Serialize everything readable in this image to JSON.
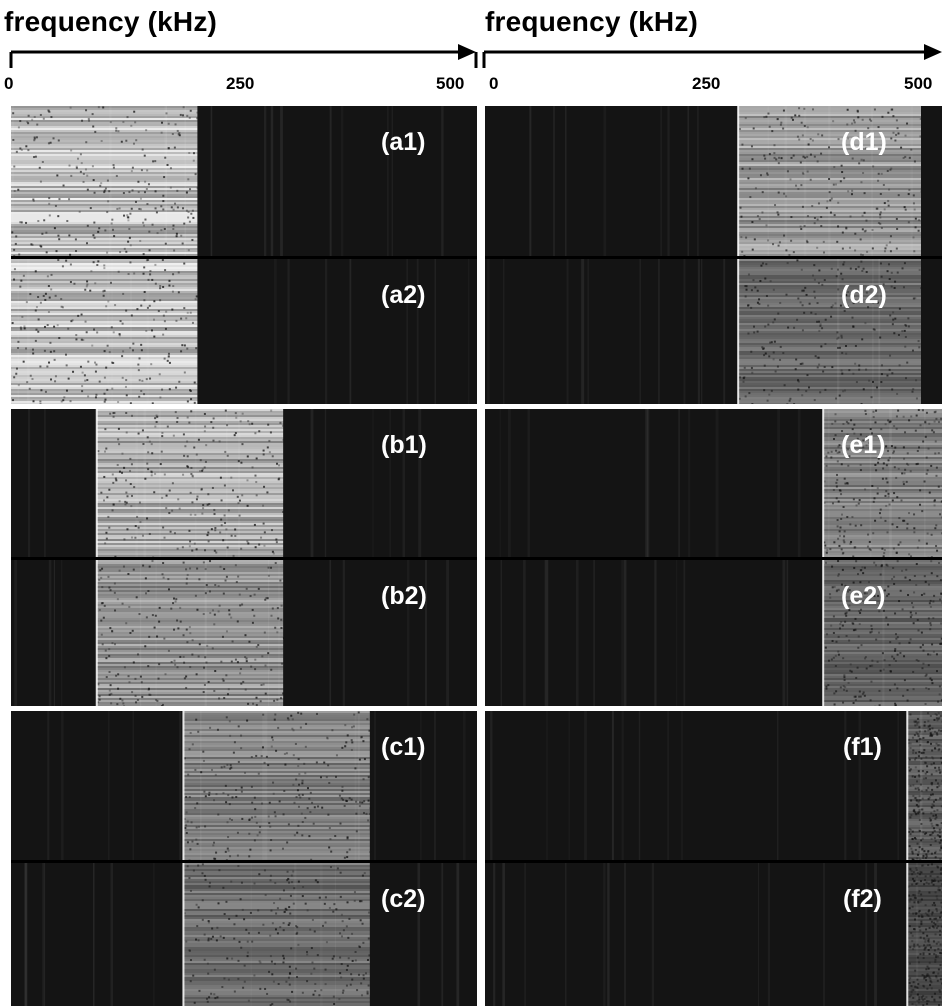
{
  "axis": {
    "left_title": "frequency (kHz)",
    "right_title": "frequency (kHz)",
    "ticks": [
      "0",
      "250",
      "500"
    ]
  },
  "panels": [
    {
      "label": "(a1)",
      "band_kHz": [
        0,
        200
      ],
      "line_kHz": null,
      "brightness": 0.95
    },
    {
      "label": "(a2)",
      "band_kHz": [
        0,
        200
      ],
      "line_kHz": null,
      "brightness": 0.95
    },
    {
      "label": "(b1)",
      "band_kHz": [
        92,
        292
      ],
      "line_kHz": 92,
      "brightness": 0.85
    },
    {
      "label": "(b2)",
      "band_kHz": [
        92,
        292
      ],
      "line_kHz": 92,
      "brightness": 0.7
    },
    {
      "label": "(c1)",
      "band_kHz": [
        185,
        385
      ],
      "line_kHz": 185,
      "brightness": 0.6
    },
    {
      "label": "(c2)",
      "band_kHz": [
        185,
        385
      ],
      "line_kHz": 185,
      "brightness": 0.5
    },
    {
      "label": "(d1)",
      "band_kHz": [
        277,
        477
      ],
      "line_kHz": 277,
      "brightness": 0.75
    },
    {
      "label": "(d2)",
      "band_kHz": [
        277,
        477
      ],
      "line_kHz": 277,
      "brightness": 0.5
    },
    {
      "label": "(e1)",
      "band_kHz": [
        370,
        570
      ],
      "line_kHz": 370,
      "brightness": 0.6
    },
    {
      "label": "(e2)",
      "band_kHz": [
        370,
        570
      ],
      "line_kHz": 370,
      "brightness": 0.45
    },
    {
      "label": "(f1)",
      "band_kHz": [
        462,
        662
      ],
      "line_kHz": 462,
      "brightness": 0.4
    },
    {
      "label": "(f2)",
      "band_kHz": [
        462,
        662
      ],
      "line_kHz": 462,
      "brightness": 0.3
    }
  ],
  "colors": {
    "background": "#141414",
    "signal": "#ffffff",
    "separator_group": "#ffffff",
    "separator_pair": "#000000",
    "axis": "#000000"
  }
}
